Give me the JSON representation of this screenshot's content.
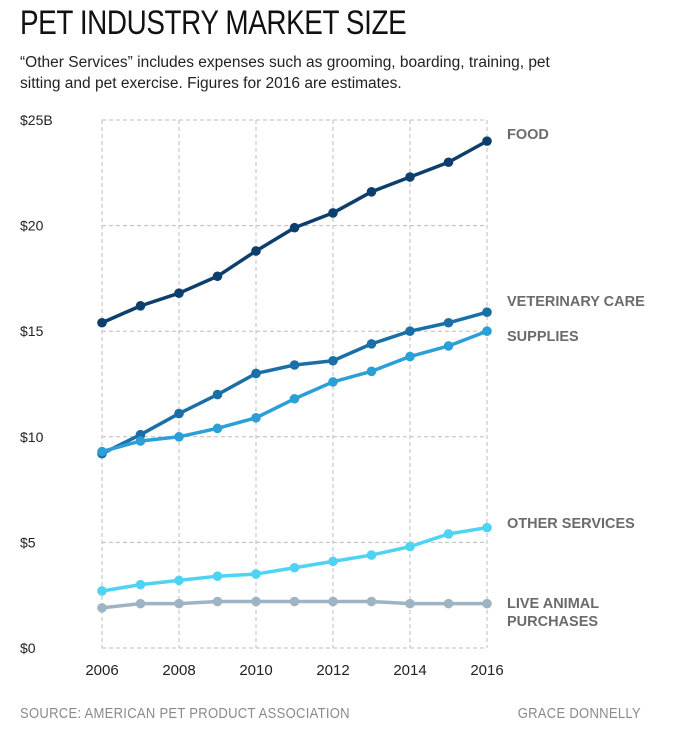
{
  "header": {
    "title": "PET INDUSTRY MARKET SIZE",
    "subtitle": "“Other Services” includes expenses such as grooming, boarding, training, pet sitting and pet exercise. Figures for 2016 are estimates."
  },
  "footer": {
    "source": "SOURCE: AMERICAN PET PRODUCT ASSOCIATION",
    "credit": "GRACE DONNELLY"
  },
  "chart_data": {
    "type": "line",
    "title": "PET INDUSTRY MARKET SIZE",
    "xlabel": "",
    "ylabel": "",
    "x": [
      2006,
      2007,
      2008,
      2009,
      2010,
      2011,
      2012,
      2013,
      2014,
      2015,
      2016
    ],
    "x_ticks": [
      "2006",
      "2008",
      "2010",
      "2012",
      "2014",
      "2016"
    ],
    "y_ticks": [
      "$0",
      "$5",
      "$10",
      "$15",
      "$20",
      "$25B"
    ],
    "ylim": [
      0,
      25
    ],
    "grid": true,
    "legend_placement": "right (direct labels)",
    "series": [
      {
        "name": "FOOD",
        "color": "#0d3f6e",
        "values": [
          15.4,
          16.2,
          16.8,
          17.6,
          18.8,
          19.9,
          20.6,
          21.6,
          22.3,
          23.0,
          24.0
        ]
      },
      {
        "name": "VETERINARY CARE",
        "color": "#1a6fa6",
        "values": [
          9.2,
          10.1,
          11.1,
          12.0,
          13.0,
          13.4,
          13.6,
          14.4,
          15.0,
          15.4,
          15.9
        ]
      },
      {
        "name": "SUPPLIES",
        "color": "#2b9fd6",
        "values": [
          9.3,
          9.8,
          10.0,
          10.4,
          10.9,
          11.8,
          12.6,
          13.1,
          13.8,
          14.3,
          15.0
        ]
      },
      {
        "name": "OTHER SERVICES",
        "color": "#4fd3f2",
        "values": [
          2.7,
          3.0,
          3.2,
          3.4,
          3.5,
          3.8,
          4.1,
          4.4,
          4.8,
          5.4,
          5.7
        ]
      },
      {
        "name": "LIVE ANIMAL PURCHASES",
        "color": "#9fb4c2",
        "values": [
          1.9,
          2.1,
          2.1,
          2.2,
          2.2,
          2.2,
          2.2,
          2.2,
          2.1,
          2.1,
          2.1
        ]
      }
    ]
  }
}
